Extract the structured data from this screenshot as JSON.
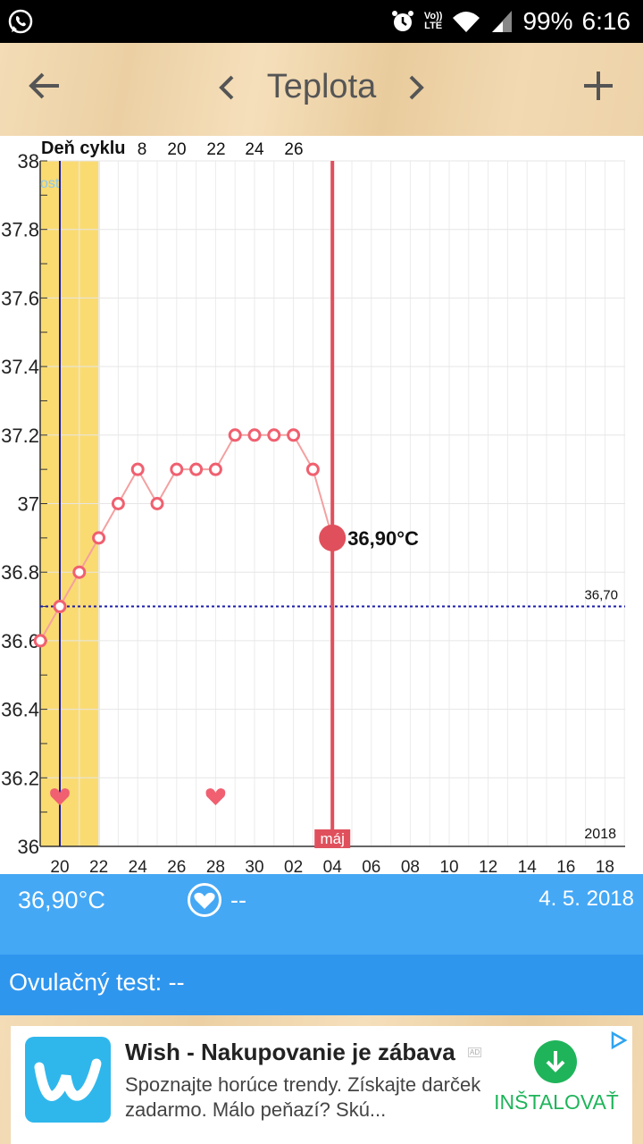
{
  "status_bar": {
    "app_icon": "whatsapp-icon",
    "lte_top": "Vo))",
    "lte_bottom": "LTE",
    "battery": "99%",
    "time": "6:16"
  },
  "toolbar": {
    "title": "Teplota",
    "back_icon": "arrow-back-icon",
    "prev_icon": "chevron-left-icon",
    "next_icon": "chevron-right-icon",
    "add_icon": "plus-icon"
  },
  "chart_data": {
    "type": "line",
    "cycle_label": "Deň cyklu",
    "cycle_ticks": [
      "8",
      "20",
      "22",
      "24",
      "26"
    ],
    "fertile_label": "osť",
    "y_ticks": [
      "38",
      "37.8",
      "37.6",
      "37.4",
      "37.2",
      "37",
      "36.8",
      "36.6",
      "36.4",
      "36.2",
      "36"
    ],
    "ylim": [
      36,
      38
    ],
    "x_ticks": [
      "20",
      "22",
      "24",
      "26",
      "28",
      "30",
      "02",
      "04",
      "06",
      "08",
      "10",
      "12",
      "14",
      "16",
      "18"
    ],
    "x_day_index_range": [
      -1,
      29
    ],
    "series": [
      {
        "day_index": [
          -1,
          0,
          1,
          2,
          3,
          4,
          5,
          6,
          7,
          8,
          9,
          10,
          11,
          12,
          13,
          14,
          15
        ],
        "values": [
          36.6,
          36.7,
          36.8,
          36.9,
          37.0,
          37.1,
          37.0,
          37.1,
          37.1,
          37.1,
          37.2,
          37.2,
          37.2,
          37.2,
          37.1,
          36.9,
          null
        ]
      }
    ],
    "selected_day_index": 14,
    "selected_value": 36.9,
    "selected_label": "36,90°C",
    "coverline_value": 36.7,
    "coverline_label": "36,70",
    "period_end_day_index": 2,
    "ovulation_day_index": 0,
    "heart_day_indices": [
      0,
      8
    ],
    "month_label": "máj",
    "year_label": "2018",
    "colors": {
      "line": "#f4a0a0",
      "marker": "#f06070",
      "selected": "#e0505c",
      "fertile": "#fadb72",
      "ovulation_line": "#1a1aa8",
      "coverline": "#1a1aa8",
      "heart": "#f06070"
    }
  },
  "info": {
    "temperature": "36,90°C",
    "heart_icon": "heart-icon",
    "sex_value": "--",
    "date": "4. 5. 2018"
  },
  "ovulation": {
    "label": "Ovulačný test: --"
  },
  "ad": {
    "app_name": "Wish - Nakupovanie je zábava",
    "ad_badge": "AD",
    "description": "Spoznajte horúce trendy. Získajte darček zadarmo. Málo peňazí? Skú...",
    "install_label": "INŠTALOVAŤ",
    "logo_icon": "wish-logo-icon",
    "download_icon": "download-icon",
    "adchoices_icon": "adchoices-icon"
  }
}
